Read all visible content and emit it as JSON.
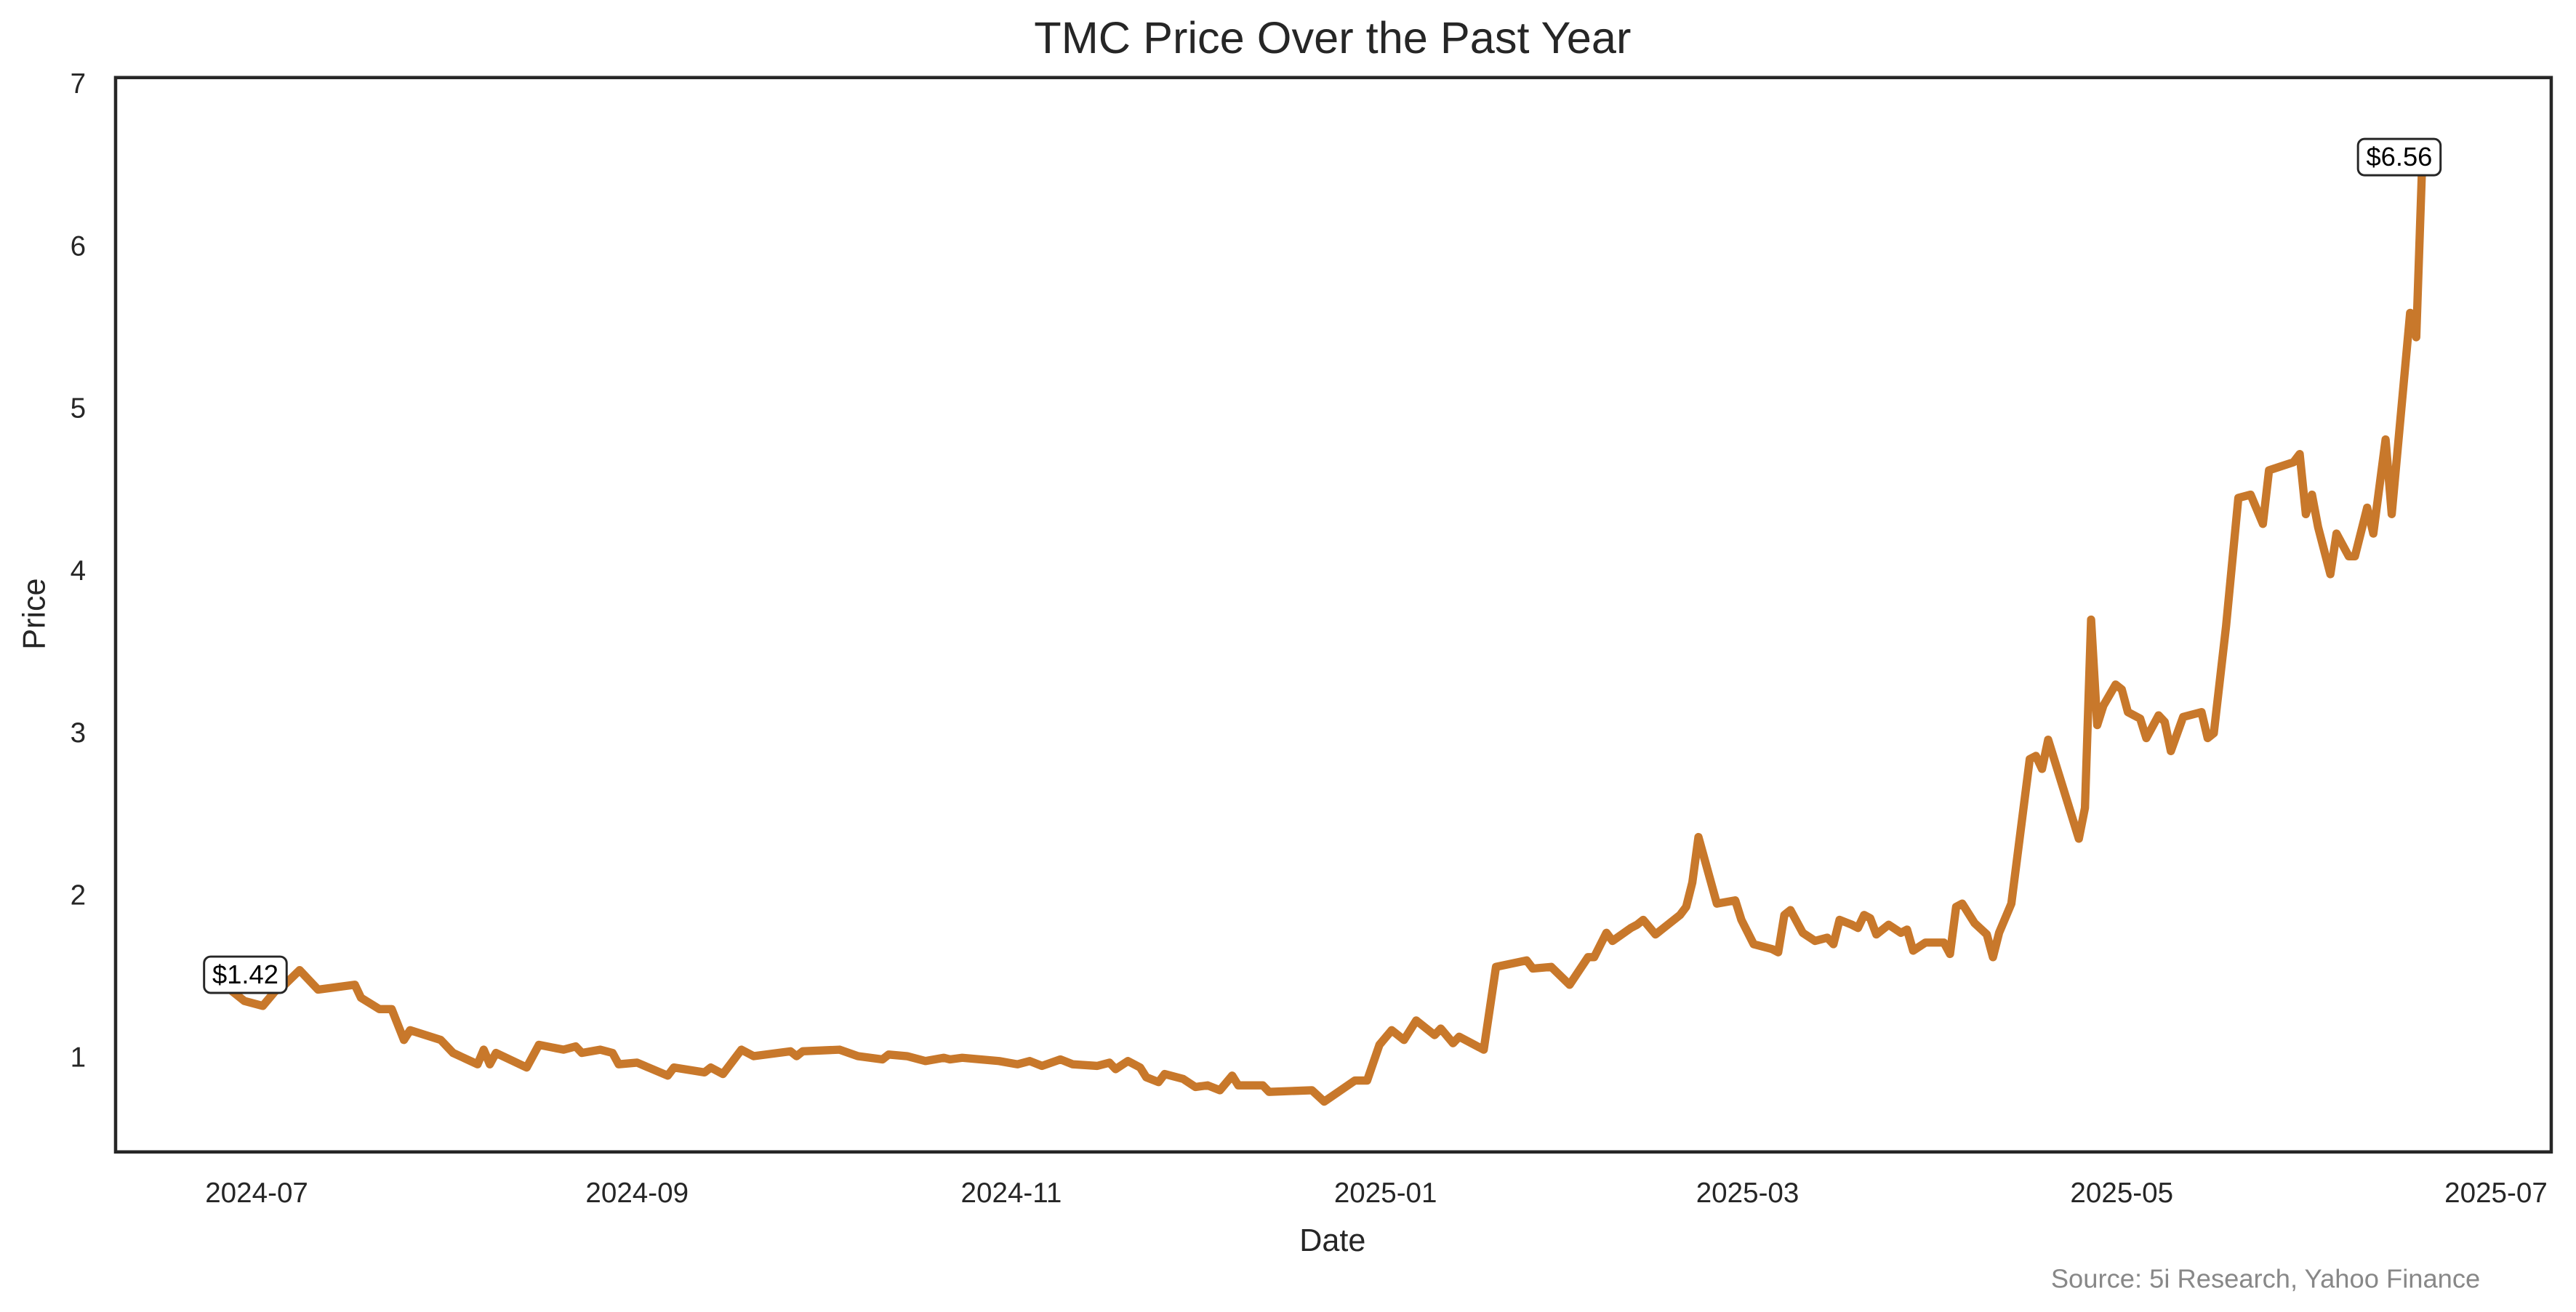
{
  "chart_data": {
    "type": "line",
    "title": "TMC Price Over the Past Year",
    "xlabel": "Date",
    "ylabel": "Price",
    "source": "Source: 5i Research, Yahoo Finance",
    "color": "#c8782b",
    "x": [
      "2024-06-27",
      "2024-06-29",
      "2024-07-01",
      "2024-07-02",
      "2024-07-04",
      "2024-07-05",
      "2024-07-08",
      "2024-07-11",
      "2024-07-17",
      "2024-07-18",
      "2024-07-21",
      "2024-07-23",
      "2024-07-25",
      "2024-07-26",
      "2024-07-31",
      "2024-08-02",
      "2024-08-06",
      "2024-08-07",
      "2024-08-08",
      "2024-08-09",
      "2024-08-14",
      "2024-08-16",
      "2024-08-20",
      "2024-08-22",
      "2024-08-23",
      "2024-08-26",
      "2024-08-28",
      "2024-08-29",
      "2024-09-01",
      "2024-09-06",
      "2024-09-07",
      "2024-09-12",
      "2024-09-13",
      "2024-09-15",
      "2024-09-18",
      "2024-09-20",
      "2024-09-26",
      "2024-09-27",
      "2024-09-28",
      "2024-10-04",
      "2024-10-07",
      "2024-10-11",
      "2024-10-12",
      "2024-10-15",
      "2024-10-18",
      "2024-10-21",
      "2024-10-22",
      "2024-10-24",
      "2024-10-30",
      "2024-11-02",
      "2024-11-04",
      "2024-11-06",
      "2024-11-09",
      "2024-11-11",
      "2024-11-15",
      "2024-11-17",
      "2024-11-18",
      "2024-11-20",
      "2024-11-22",
      "2024-11-23",
      "2024-11-25",
      "2024-11-26",
      "2024-11-29",
      "2024-12-01",
      "2024-12-03",
      "2024-12-05",
      "2024-12-07",
      "2024-12-08",
      "2024-12-12",
      "2024-12-13",
      "2024-12-20",
      "2024-12-22",
      "2024-12-27",
      "2024-12-29",
      "2024-12-31",
      "2025-01-02",
      "2025-01-04",
      "2025-01-06",
      "2025-01-09",
      "2025-01-10",
      "2025-01-12",
      "2025-01-13",
      "2025-01-17",
      "2025-01-19",
      "2025-01-24",
      "2025-01-25",
      "2025-01-28",
      "2025-01-31",
      "2025-02-03",
      "2025-02-04",
      "2025-02-06",
      "2025-02-07",
      "2025-02-10",
      "2025-02-11",
      "2025-02-12",
      "2025-02-14",
      "2025-02-18",
      "2025-02-19",
      "2025-02-20",
      "2025-02-21",
      "2025-02-24",
      "2025-02-27",
      "2025-02-28",
      "2025-03-02",
      "2025-03-05",
      "2025-03-06",
      "2025-03-07",
      "2025-03-08",
      "2025-03-10",
      "2025-03-12",
      "2025-03-14",
      "2025-03-15",
      "2025-03-16",
      "2025-03-18",
      "2025-03-19",
      "2025-03-20",
      "2025-03-21",
      "2025-03-22",
      "2025-03-24",
      "2025-03-26",
      "2025-03-27",
      "2025-03-28",
      "2025-03-30",
      "2025-04-02",
      "2025-04-03",
      "2025-04-04",
      "2025-04-05",
      "2025-04-07",
      "2025-04-09",
      "2025-04-10",
      "2025-04-11",
      "2025-04-13",
      "2025-04-16",
      "2025-04-17",
      "2025-04-18",
      "2025-04-19",
      "2025-04-24",
      "2025-04-25",
      "2025-04-26",
      "2025-04-27",
      "2025-04-28",
      "2025-04-30",
      "2025-05-01",
      "2025-05-02",
      "2025-05-04",
      "2025-05-05",
      "2025-05-07",
      "2025-05-08",
      "2025-05-09",
      "2025-05-11",
      "2025-05-14",
      "2025-05-15",
      "2025-05-16",
      "2025-05-18",
      "2025-05-20",
      "2025-05-22",
      "2025-05-24",
      "2025-05-25",
      "2025-05-29",
      "2025-05-30",
      "2025-05-31",
      "2025-06-01",
      "2025-06-02",
      "2025-06-04",
      "2025-06-05",
      "2025-06-07",
      "2025-06-08",
      "2025-06-10",
      "2025-06-11",
      "2025-06-13",
      "2025-06-14",
      "2025-06-17",
      "2025-06-18",
      "2025-06-19"
    ],
    "values": [
      1.42,
      1.36,
      1.34,
      1.33,
      1.42,
      1.44,
      1.55,
      1.43,
      1.46,
      1.38,
      1.31,
      1.31,
      1.12,
      1.18,
      1.12,
      1.04,
      0.97,
      1.06,
      0.97,
      1.04,
      0.95,
      1.09,
      1.06,
      1.08,
      1.04,
      1.06,
      1.04,
      0.97,
      0.98,
      0.9,
      0.95,
      0.92,
      0.95,
      0.91,
      1.06,
      1.02,
      1.05,
      1.02,
      1.05,
      1.06,
      1.02,
      1.0,
      1.03,
      1.02,
      0.99,
      1.01,
      1.0,
      1.01,
      0.99,
      0.97,
      0.99,
      0.96,
      1.0,
      0.97,
      0.96,
      0.98,
      0.94,
      0.99,
      0.95,
      0.89,
      0.86,
      0.91,
      0.88,
      0.83,
      0.84,
      0.81,
      0.9,
      0.84,
      0.84,
      0.8,
      0.81,
      0.74,
      0.87,
      0.87,
      1.09,
      1.18,
      1.12,
      1.24,
      1.15,
      1.19,
      1.1,
      1.14,
      1.06,
      1.57,
      1.61,
      1.56,
      1.57,
      1.46,
      1.63,
      1.63,
      1.78,
      1.73,
      1.81,
      1.83,
      1.86,
      1.77,
      1.89,
      1.94,
      2.09,
      2.37,
      1.96,
      1.98,
      1.86,
      1.71,
      1.68,
      1.66,
      1.89,
      1.92,
      1.78,
      1.73,
      1.75,
      1.71,
      1.86,
      1.83,
      1.81,
      1.89,
      1.87,
      1.77,
      1.83,
      1.78,
      1.8,
      1.67,
      1.72,
      1.72,
      1.65,
      1.94,
      1.96,
      1.84,
      1.77,
      1.63,
      1.78,
      1.96,
      2.85,
      2.87,
      2.79,
      2.97,
      2.36,
      2.55,
      3.71,
      3.06,
      3.18,
      3.31,
      3.28,
      3.14,
      3.1,
      2.98,
      3.12,
      3.08,
      2.9,
      3.11,
      3.14,
      2.98,
      3.01,
      3.67,
      4.46,
      4.48,
      4.3,
      4.63,
      4.68,
      4.73,
      4.36,
      4.48,
      4.28,
      3.99,
      4.24,
      4.1,
      4.1,
      4.4,
      4.24,
      4.82,
      4.36,
      5.6,
      5.45,
      6.56
    ],
    "annotations": [
      {
        "label": "$1.42",
        "x": "2024-06-27",
        "y": 1.42
      },
      {
        "label": "$6.56",
        "x": "2025-06-19",
        "y": 6.56
      }
    ],
    "xlim": [
      "2024-06-08",
      "2025-07-10"
    ],
    "xticks": [
      "2024-07",
      "2024-09",
      "2024-11",
      "2025-01",
      "2025-03",
      "2025-05",
      "2025-07"
    ],
    "ylim": [
      0.43,
      7.05
    ],
    "yticks": [
      1,
      2,
      3,
      4,
      5,
      6,
      7
    ],
    "grid": false
  }
}
